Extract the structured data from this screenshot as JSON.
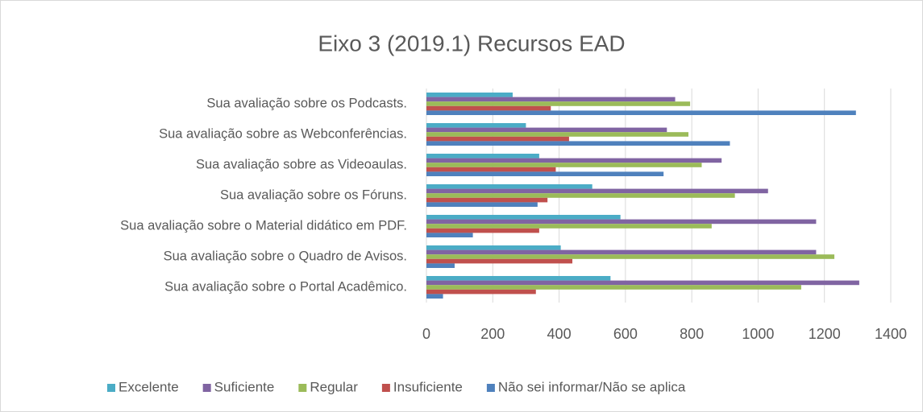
{
  "chart_data": {
    "type": "hbar",
    "title": "Eixo 3 (2019.1) Recursos EAD",
    "categories": [
      "Sua avaliação sobre os Podcasts.",
      "Sua avaliação sobre as Webconferências.",
      "Sua avaliação sobre as Videoaulas.",
      "Sua avaliação sobre os Fóruns.",
      "Sua avaliação sobre o Material didático em PDF.",
      "Sua avaliação sobre o Quadro de Avisos.",
      "Sua avaliação sobre o Portal Acadêmico."
    ],
    "series": [
      {
        "name": "Excelente",
        "color": "#4bacc6",
        "values": [
          260,
          300,
          340,
          500,
          585,
          405,
          555
        ]
      },
      {
        "name": "Suficiente",
        "color": "#8064a2",
        "values": [
          750,
          725,
          890,
          1030,
          1175,
          1175,
          1305
        ]
      },
      {
        "name": "Regular",
        "color": "#9bbb59",
        "values": [
          795,
          790,
          830,
          930,
          860,
          1230,
          1130
        ]
      },
      {
        "name": "Insuficiente",
        "color": "#c0504d",
        "values": [
          375,
          430,
          390,
          365,
          340,
          440,
          330
        ]
      },
      {
        "name": "Não sei informar/Não se aplica",
        "color": "#4f81bd",
        "values": [
          1295,
          915,
          715,
          335,
          140,
          85,
          50
        ]
      }
    ],
    "xlim": [
      0,
      1400
    ],
    "xticks": [
      0,
      200,
      400,
      600,
      800,
      1000,
      1200,
      1400
    ],
    "grid": true,
    "legend": "bottom"
  }
}
